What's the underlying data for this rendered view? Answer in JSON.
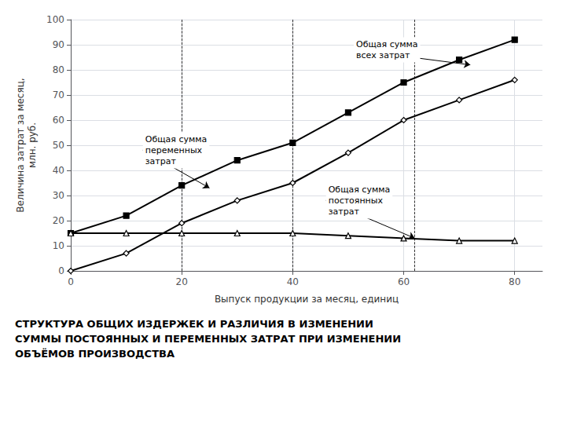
{
  "chart_data": {
    "type": "line",
    "subtitle": "СТРУКТУРА ОБЩИХ ИЗДЕРЖЕК И РАЗЛИЧИЯ В ИЗМЕНЕНИИ\nСУММЫ ПОСТОЯННЫХ И ПЕРЕМЕННЫХ ЗАТРАТ ПРИ ИЗМЕНЕНИИ\nОБЪЁМОВ ПРОИЗВОДСТВА",
    "xlabel": "Выпуск продукции за месяц, единиц",
    "ylabel": "Величина затрат за месяц,\nмлн. руб.",
    "x": [
      0,
      10,
      20,
      30,
      40,
      50,
      60,
      70,
      80
    ],
    "series": [
      {
        "color": "#000000",
        "marker": "square",
        "values": [
          15,
          22,
          34,
          44,
          51,
          63,
          75,
          84,
          92
        ]
      },
      {
        "color": "#000000",
        "marker": "diamond",
        "values": [
          0,
          7,
          19,
          28,
          35,
          47,
          60,
          68,
          76
        ]
      },
      {
        "color": "#000000",
        "marker": "triangle",
        "values": [
          15,
          15,
          15,
          15,
          15,
          14,
          13,
          12,
          12
        ]
      }
    ],
    "xlim": [
      0,
      85
    ],
    "ylim": [
      0,
      100
    ],
    "xticks": [
      0,
      20,
      40,
      60,
      80
    ],
    "yticks": [
      0,
      10,
      20,
      30,
      40,
      50,
      60,
      70,
      80,
      90,
      100
    ],
    "grid": true,
    "vlines": [
      20,
      40,
      62
    ],
    "annotations": [
      {
        "text": "Общая сумма\nвсех затрат",
        "xy": [
          72,
          82
        ],
        "xytext": [
          51,
          88
        ]
      },
      {
        "text": "Общая сумма\nпеременных\nзатрат",
        "xy": [
          25,
          33
        ],
        "xytext": [
          13,
          48
        ]
      },
      {
        "text": "Общая сумма\nпостоянных\nзатрат",
        "xy": [
          62,
          13
        ],
        "xytext": [
          46,
          28
        ]
      }
    ]
  }
}
